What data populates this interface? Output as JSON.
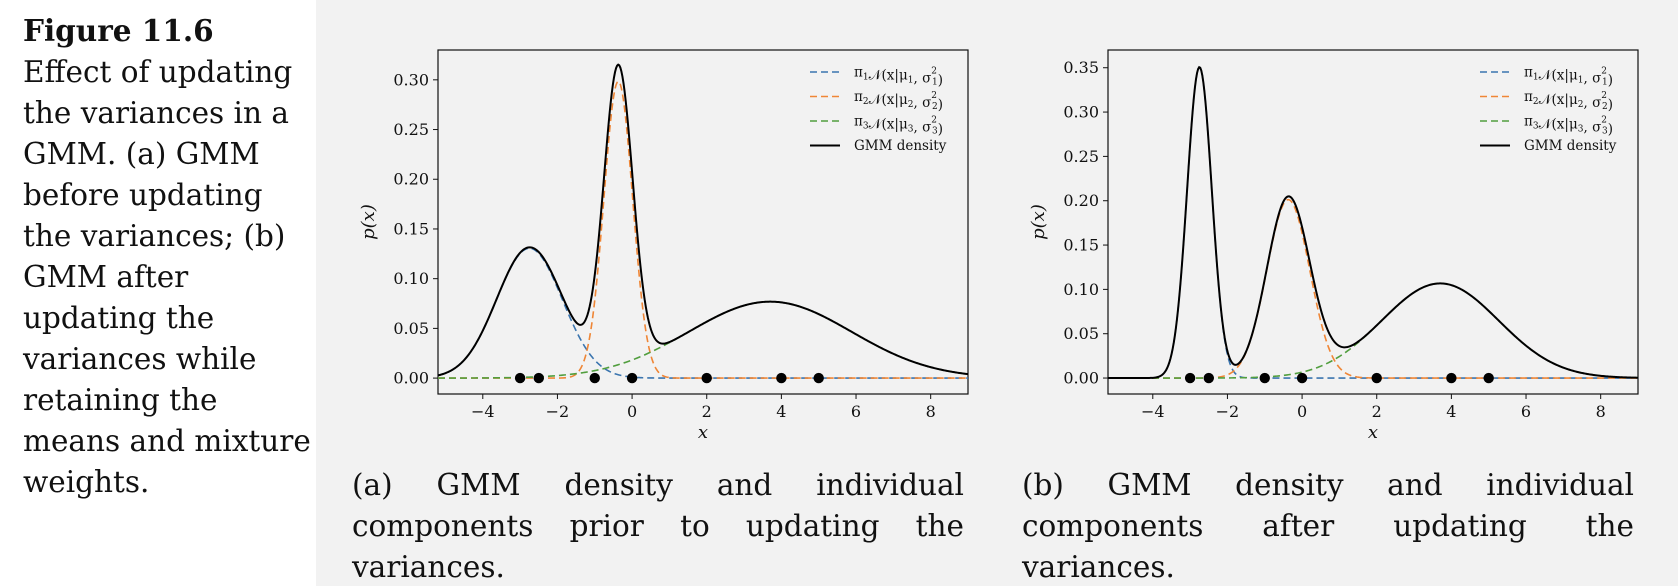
{
  "figure": {
    "label": "Figure 11.6",
    "text": "Effect of updating the variances in a GMM. (a) GMM before updating the variances; (b) GMM after updating the variances while retaining the means and mixture weights."
  },
  "colors": {
    "component1": "#3b75af",
    "component2": "#ef8636",
    "component3": "#519e3e",
    "gmm": "#000000",
    "points": "#000000",
    "sidebar_bg": "#ffffff",
    "main_bg": "#f2f2f2"
  },
  "chart_data": [
    {
      "id": "a",
      "type": "line",
      "xlabel": "x",
      "ylabel": "p(x)",
      "xlim": [
        -5.2,
        9.0
      ],
      "ylim": [
        -0.016,
        0.33
      ],
      "xticks": [
        -4,
        -2,
        0,
        2,
        4,
        6,
        8
      ],
      "xtick_labels": [
        "−4",
        "−2",
        "0",
        "2",
        "4",
        "6",
        "8"
      ],
      "yticks": [
        0.0,
        0.05,
        0.1,
        0.15,
        0.2,
        0.25,
        0.3
      ],
      "ytick_labels": [
        "0.00",
        "0.05",
        "0.10",
        "0.15",
        "0.20",
        "0.25",
        "0.30"
      ],
      "legend": {
        "placement": "top-right",
        "entries": [
          {
            "base": "π",
            "sub1": "1",
            "mid": "𝒩(x|μ",
            "sub2": "1",
            "post": ", σ",
            "sup": "2",
            "sub3": "1",
            "end": ")"
          },
          {
            "base": "π",
            "sub1": "2",
            "mid": "𝒩(x|μ",
            "sub2": "2",
            "post": ", σ",
            "sup": "2",
            "sub3": "2",
            "end": ")"
          },
          {
            "base": "π",
            "sub1": "3",
            "mid": "𝒩(x|μ",
            "sub2": "3",
            "post": ", σ",
            "sup": "2",
            "sub3": "3",
            "end": ")"
          },
          {
            "label": "GMM density"
          }
        ]
      },
      "components": [
        {
          "name": "π1N(x|μ1,σ1²)",
          "weight": 0.288,
          "mean": -2.75,
          "std": 0.88,
          "style": "dashed"
        },
        {
          "name": "π2N(x|μ2,σ2²)",
          "weight": 0.288,
          "mean": -0.37,
          "std": 0.385,
          "style": "dashed"
        },
        {
          "name": "π3N(x|μ3,σ3²)",
          "weight": 0.42,
          "mean": 3.7,
          "std": 2.18,
          "style": "dashed"
        }
      ],
      "data_points": [
        -3,
        -2.5,
        -1,
        0,
        2,
        4,
        5
      ],
      "caption": "(a) GMM density and individual components prior to updating the variances."
    },
    {
      "id": "b",
      "type": "line",
      "xlabel": "x",
      "ylabel": "p(x)",
      "xlim": [
        -5.2,
        9.0
      ],
      "ylim": [
        -0.018,
        0.37
      ],
      "xticks": [
        -4,
        -2,
        0,
        2,
        4,
        6,
        8
      ],
      "xtick_labels": [
        "−4",
        "−2",
        "0",
        "2",
        "4",
        "6",
        "8"
      ],
      "yticks": [
        0.0,
        0.05,
        0.1,
        0.15,
        0.2,
        0.25,
        0.3,
        0.35
      ],
      "ytick_labels": [
        "0.00",
        "0.05",
        "0.10",
        "0.15",
        "0.20",
        "0.25",
        "0.30",
        "0.35"
      ],
      "legend": {
        "placement": "top-right",
        "entries": [
          {
            "base": "π",
            "sub1": "1",
            "mid": "𝒩(x|μ",
            "sub2": "1",
            "post": ", σ",
            "sup": "2",
            "sub3": "1",
            "end": ")"
          },
          {
            "base": "π",
            "sub1": "2",
            "mid": "𝒩(x|μ",
            "sub2": "2",
            "post": ", σ",
            "sup": "2",
            "sub3": "2",
            "end": ")"
          },
          {
            "base": "π",
            "sub1": "3",
            "mid": "𝒩(x|μ",
            "sub2": "3",
            "post": ", σ",
            "sup": "2",
            "sub3": "3",
            "end": ")"
          },
          {
            "label": "GMM density"
          }
        ]
      },
      "components": [
        {
          "name": "π1N(x|μ1,σ1²)",
          "weight": 0.29,
          "mean": -2.75,
          "std": 0.33,
          "style": "dashed"
        },
        {
          "name": "π2N(x|μ2,σ2²)",
          "weight": 0.29,
          "mean": -0.37,
          "std": 0.575,
          "style": "dashed"
        },
        {
          "name": "π3N(x|μ3,σ3²)",
          "weight": 0.42,
          "mean": 3.7,
          "std": 1.57,
          "style": "dashed"
        }
      ],
      "data_points": [
        -3,
        -2.5,
        -1,
        0,
        2,
        4,
        5
      ],
      "caption": "(b) GMM density and individual components after updating the variances."
    }
  ]
}
